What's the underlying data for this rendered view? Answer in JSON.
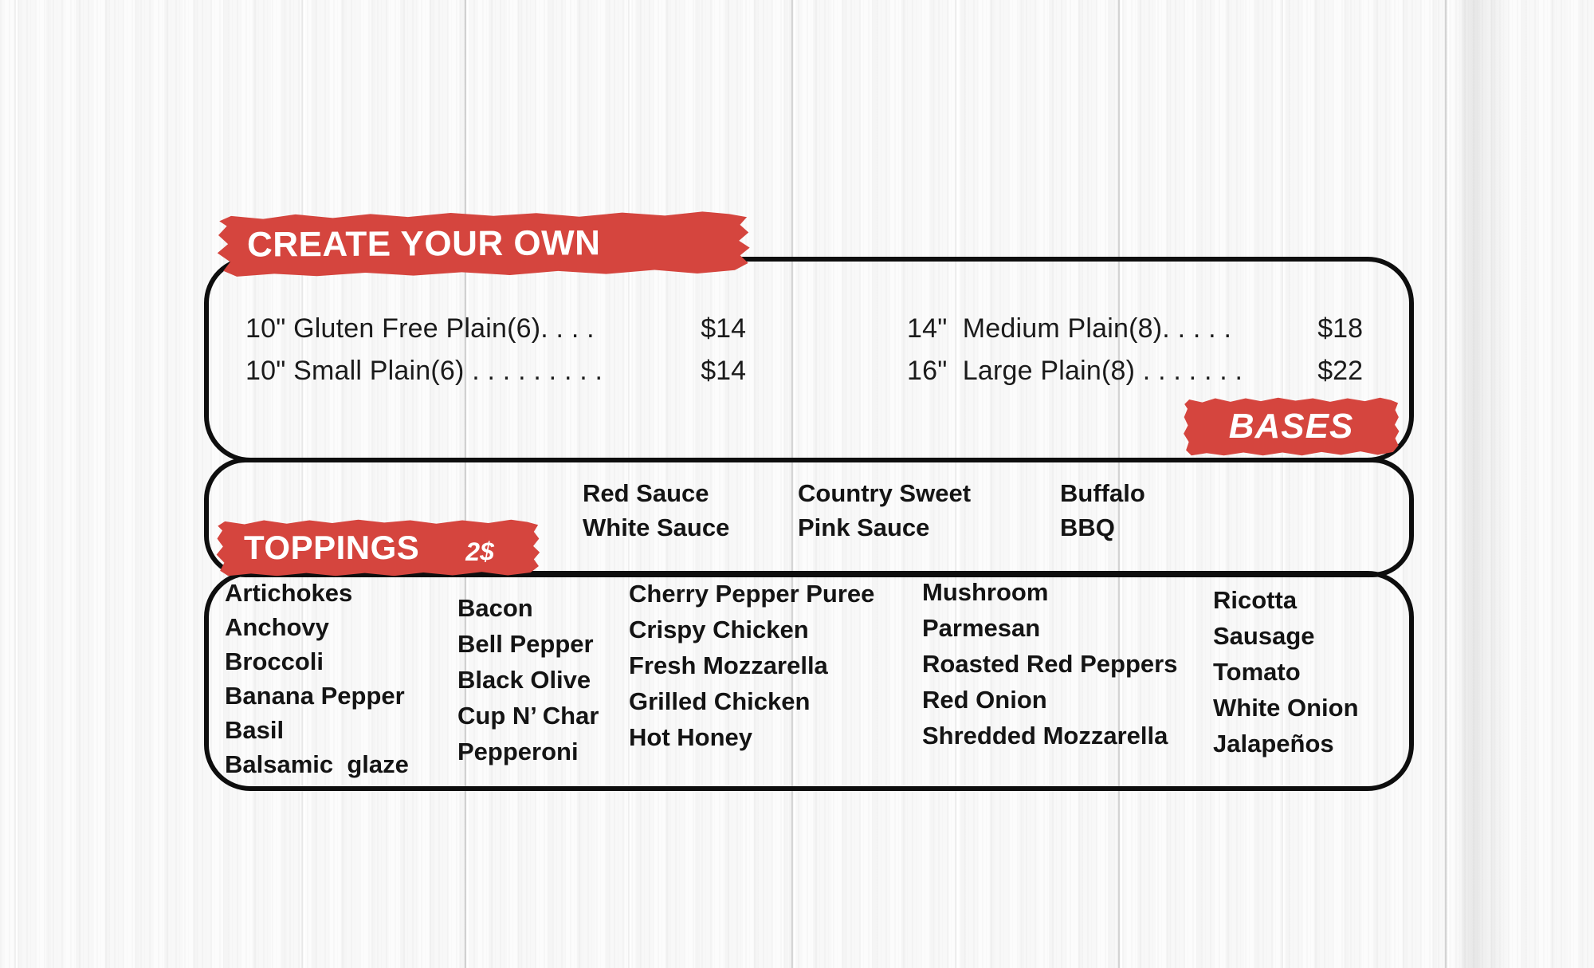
{
  "colors": {
    "brush_red": "#d5453e",
    "ink": "#141414",
    "outline": "#0e0e0e",
    "background": "#f8f8f8"
  },
  "sections": {
    "create_your_own": {
      "title": "CREATE YOUR OWN",
      "items_left": [
        {
          "label": "10\" Gluten Free Plain(6). . . .",
          "price": "$14"
        },
        {
          "label": "10\" Small Plain(6) . . . . . . . . .",
          "price": "$14"
        }
      ],
      "items_right": [
        {
          "label": "14\"  Medium Plain(8). . . . .",
          "price": "$18"
        },
        {
          "label": "16\"  Large Plain(8) . . . . . . .",
          "price": "$22"
        }
      ]
    },
    "bases": {
      "title": "BASES",
      "columns": [
        [
          "Red Sauce",
          "White Sauce"
        ],
        [
          "Country Sweet",
          "Pink Sauce"
        ],
        [
          "Buffalo",
          "BBQ"
        ]
      ]
    },
    "toppings": {
      "title": "TOPPINGS",
      "price_badge": "2$",
      "columns": [
        [
          "Artichokes",
          "Anchovy",
          "Broccoli",
          "Banana Pepper",
          "Basil",
          "Balsamic  glaze"
        ],
        [
          "Bacon",
          "Bell Pepper",
          "Black Olive",
          "Cup N’ Char",
          "Pepperoni"
        ],
        [
          "Cherry Pepper Puree",
          "Crispy Chicken",
          "Fresh Mozzarella",
          "Grilled Chicken",
          "Hot Honey"
        ],
        [
          "Mushroom",
          "Parmesan",
          "Roasted Red Peppers",
          "Red Onion",
          "Shredded Mozzarella"
        ],
        [
          "Ricotta",
          "Sausage",
          "Tomato",
          "White Onion",
          "Jalapeños"
        ]
      ]
    }
  }
}
